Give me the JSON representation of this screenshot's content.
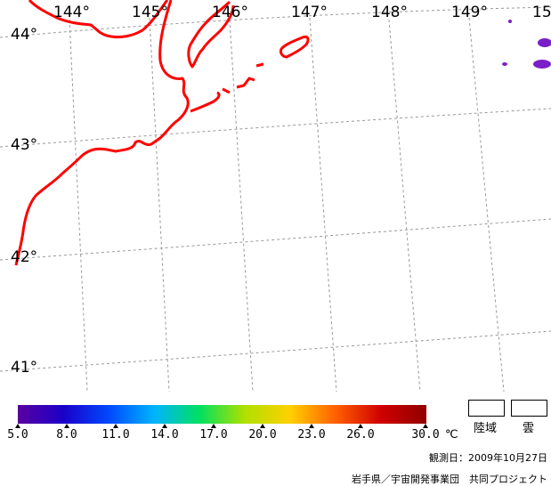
{
  "map": {
    "longitude_labels": [
      "144°",
      "145°",
      "146°",
      "147°",
      "148°",
      "149°",
      "15"
    ],
    "latitude_labels": [
      "44°",
      "43°",
      "42°",
      "41°"
    ],
    "colors": {
      "coastline": "#ff0000",
      "grid": "#999999",
      "cloud": "#7a1fc8"
    }
  },
  "colorbar": {
    "ticks": [
      "5.0",
      "8.0",
      "11.0",
      "14.0",
      "17.0",
      "20.0",
      "23.0",
      "26.0",
      "30.0"
    ],
    "unit": "℃",
    "range": [
      5.0,
      30.0
    ],
    "gradient_colors": [
      "#5a00a0",
      "#1a00c8",
      "#0048ff",
      "#00b4ff",
      "#00e060",
      "#b0e000",
      "#ffd000",
      "#ff6000",
      "#d00000",
      "#900000"
    ]
  },
  "legend": {
    "land_label": "陸域",
    "cloud_label": "雲"
  },
  "observation_date": "観測日：2009年10月27日",
  "credit": "岩手県／宇宙開発事業団　共同プロジェクト"
}
